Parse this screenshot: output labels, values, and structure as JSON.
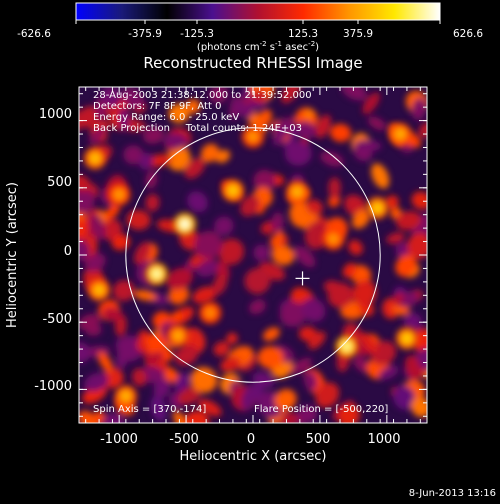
{
  "colorbar": {
    "ticks": [
      "-626.6",
      "-375.9",
      "-125.3",
      "125.3",
      "375.9",
      "626.6"
    ],
    "unit_pre": "(photons cm",
    "unit_exp1": "-2",
    "unit_mid": " s",
    "unit_exp2": "-1",
    "unit_mid2": " asec",
    "unit_exp3": "-2",
    "unit_post": ")",
    "gradient_colors": [
      "#0000ff",
      "#1a1a7a",
      "#000000",
      "#4b0f8f",
      "#b01030",
      "#ff2a00",
      "#ff9500",
      "#ffe800",
      "#ffffff"
    ]
  },
  "chart_data": {
    "type": "heatmap",
    "title": "Reconstructed RHESSI Image",
    "xlabel": "Heliocentric X (arcsec)",
    "ylabel": "Heliocentric Y (arcsec)",
    "xlim": [
      -1300,
      1300
    ],
    "ylim": [
      -1250,
      1250
    ],
    "xticks": [
      "-1000",
      "-500",
      "0",
      "500",
      "1000"
    ],
    "yticks": [
      "-1000",
      "-500",
      "0",
      "500",
      "1000"
    ],
    "value_range": [
      -626.6,
      626.6
    ],
    "solar_limb_radius_arcsec": 950,
    "flare_position": [
      -500,
      220
    ],
    "spin_axis": [
      370,
      -174
    ],
    "annotations": [
      "28-Aug-2003 21:38:12.000 to 21:39:52.000",
      "Detectors: 7F 8F 9F, Att 0",
      "Energy Range: 6.0 - 25.0 keV",
      "Back Projection     Total counts: 1.24E+03"
    ],
    "bottom_left_note": "Spin Axis = [370,-174]",
    "bottom_right_note": "Flare Position = [-500,220]",
    "hot_spots": [
      {
        "x": -510,
        "y": 230,
        "v": 620
      },
      {
        "x": -720,
        "y": -140,
        "v": 580
      },
      {
        "x": 700,
        "y": -680,
        "v": 560
      },
      {
        "x": -150,
        "y": 480,
        "v": 420
      },
      {
        "x": 330,
        "y": 470,
        "v": 380
      },
      {
        "x": 930,
        "y": 350,
        "v": 420
      },
      {
        "x": 1150,
        "y": -620,
        "v": 430
      },
      {
        "x": -1180,
        "y": 720,
        "v": 400
      },
      {
        "x": -1150,
        "y": -260,
        "v": 400
      },
      {
        "x": -950,
        "y": -1050,
        "v": 380
      },
      {
        "x": -560,
        "y": -600,
        "v": 360
      },
      {
        "x": 1100,
        "y": 900,
        "v": 370
      },
      {
        "x": 0,
        "y": 880,
        "v": 320
      },
      {
        "x": -320,
        "y": -430,
        "v": 300
      },
      {
        "x": 600,
        "y": 120,
        "v": 320
      },
      {
        "x": -1000,
        "y": 450,
        "v": 330
      }
    ]
  },
  "footer": {
    "timestamp": "8-Jun-2013 13:16"
  }
}
